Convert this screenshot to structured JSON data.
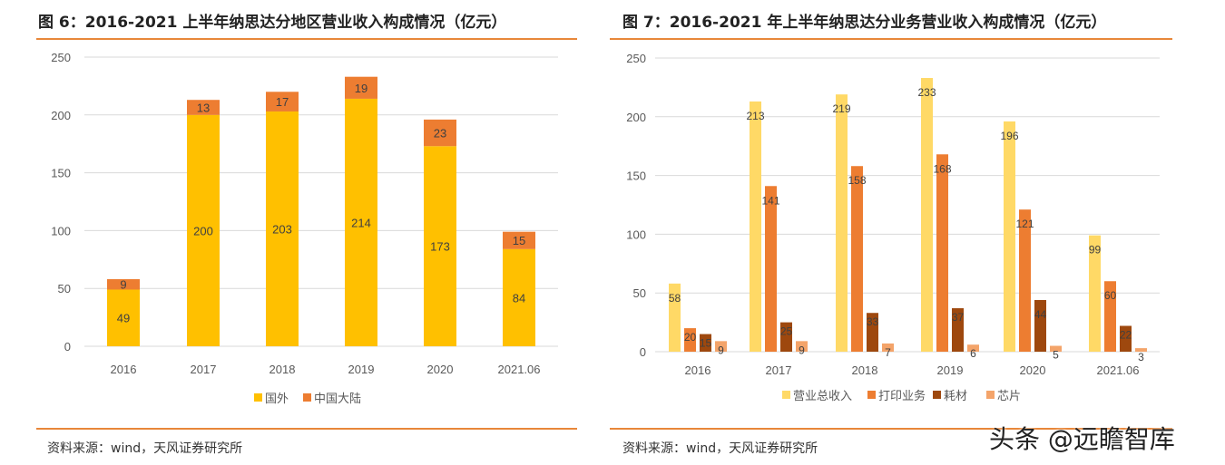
{
  "chart_data": [
    {
      "type": "bar",
      "stacked": true,
      "title": "图 6：2016-2021 上半年纳思达分地区营业收入构成情况（亿元）",
      "categories": [
        "2016",
        "2017",
        "2018",
        "2019",
        "2020",
        "2021.06"
      ],
      "ylim": [
        0,
        250
      ],
      "yticks": [
        0,
        50,
        100,
        150,
        200,
        250
      ],
      "grid": true,
      "legend": "bottom",
      "series": [
        {
          "name": "国外",
          "color": "#FFC000",
          "values": [
            49,
            200,
            203,
            214,
            173,
            84
          ]
        },
        {
          "name": "中国大陆",
          "color": "#ED7D31",
          "values": [
            9,
            13,
            17,
            19,
            23,
            15
          ]
        }
      ],
      "source": "资料来源：wind，天风证券研究所"
    },
    {
      "type": "bar",
      "stacked": false,
      "title": "图 7：2016-2021 年上半年纳思达分业务营业收入构成情况（亿元）",
      "categories": [
        "2016",
        "2017",
        "2018",
        "2019",
        "2020",
        "2021.06"
      ],
      "ylim": [
        0,
        250
      ],
      "yticks": [
        0,
        50,
        100,
        150,
        200,
        250
      ],
      "grid": true,
      "legend": "bottom",
      "series": [
        {
          "name": "营业总收入",
          "color": "#FFD966",
          "values": [
            58,
            213,
            219,
            233,
            196,
            99
          ]
        },
        {
          "name": "打印业务",
          "color": "#ED7D31",
          "values": [
            20,
            141,
            158,
            168,
            121,
            60
          ]
        },
        {
          "name": "耗材",
          "color": "#9E480E",
          "values": [
            15,
            25,
            33,
            37,
            44,
            22
          ]
        },
        {
          "name": "芯片",
          "color": "#F4A46A",
          "values": [
            9,
            9,
            7,
            6,
            5,
            3
          ]
        }
      ],
      "source": "资料来源：wind，天风证券研究所"
    }
  ],
  "watermark": "头条 @远瞻智库"
}
